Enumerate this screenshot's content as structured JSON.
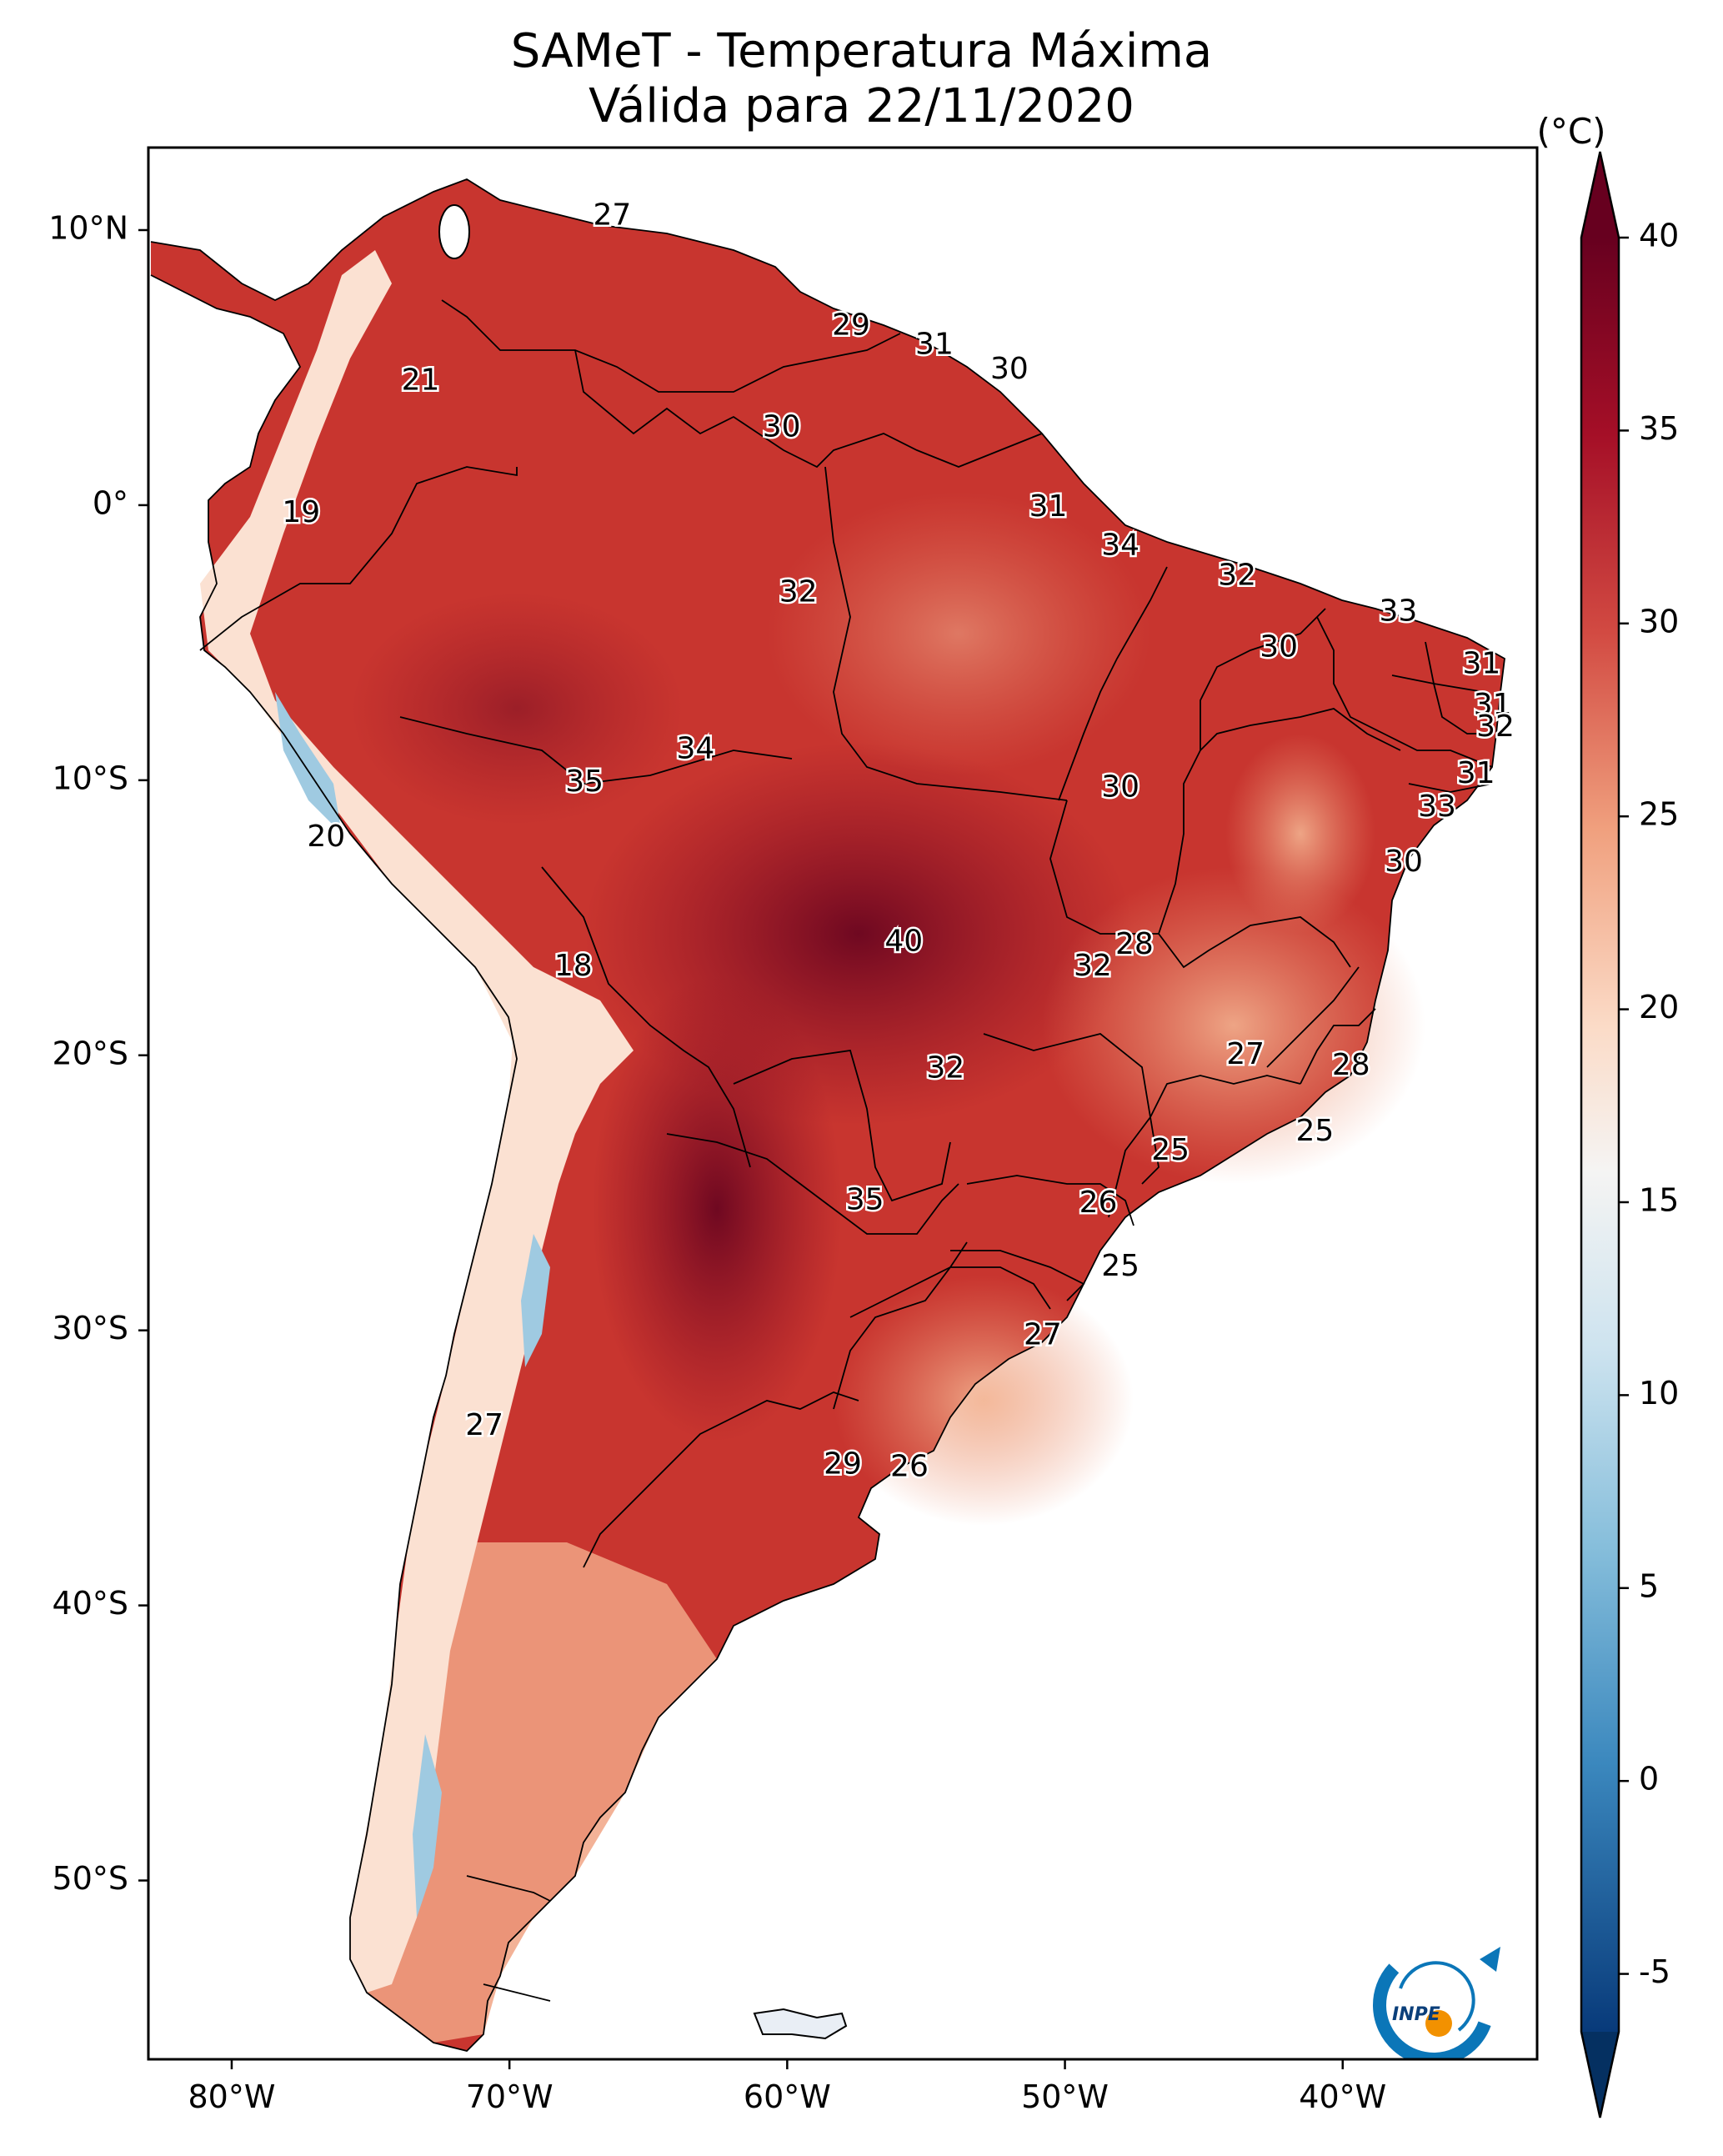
{
  "title": "SAMeT - Temperatura Máxima",
  "subtitle": "Válida para 22/11/2020",
  "logo_text": "INPE",
  "colorbar": {
    "unit": "(°C)",
    "ticks": [
      "40",
      "35",
      "30",
      "25",
      "20",
      "15",
      "10",
      "5",
      "0",
      "-5"
    ]
  },
  "lat_ticks": [
    "10°N",
    "0°",
    "10°S",
    "20°S",
    "30°S",
    "40°S",
    "50°S"
  ],
  "lon_ticks": [
    "80°W",
    "70°W",
    "60°W",
    "50°W",
    "40°W"
  ],
  "map_labels": [
    {
      "text": "27",
      "lon": -66.3,
      "lat": 10.5
    },
    {
      "text": "21",
      "lon": -73.2,
      "lat": 4.5
    },
    {
      "text": "29",
      "lon": -57.7,
      "lat": 6.5
    },
    {
      "text": "31",
      "lon": -54.7,
      "lat": 5.8
    },
    {
      "text": "30",
      "lon": -52.0,
      "lat": 4.9
    },
    {
      "text": "30",
      "lon": -60.2,
      "lat": 2.8
    },
    {
      "text": "19",
      "lon": -77.5,
      "lat": -0.3
    },
    {
      "text": "31",
      "lon": -50.6,
      "lat": -0.1
    },
    {
      "text": "34",
      "lon": -48.0,
      "lat": -1.5
    },
    {
      "text": "32",
      "lon": -59.6,
      "lat": -3.2
    },
    {
      "text": "32",
      "lon": -43.8,
      "lat": -2.6
    },
    {
      "text": "33",
      "lon": -38.0,
      "lat": -3.9
    },
    {
      "text": "30",
      "lon": -42.3,
      "lat": -5.2
    },
    {
      "text": "31",
      "lon": -35.0,
      "lat": -5.8
    },
    {
      "text": "31",
      "lon": -34.6,
      "lat": -7.3
    },
    {
      "text": "32",
      "lon": -34.5,
      "lat": -8.1
    },
    {
      "text": "34",
      "lon": -63.3,
      "lat": -8.9
    },
    {
      "text": "35",
      "lon": -67.3,
      "lat": -10.1
    },
    {
      "text": "30",
      "lon": -48.0,
      "lat": -10.3
    },
    {
      "text": "31",
      "lon": -35.2,
      "lat": -9.8
    },
    {
      "text": "33",
      "lon": -36.6,
      "lat": -11.0
    },
    {
      "text": "20",
      "lon": -76.6,
      "lat": -12.1
    },
    {
      "text": "30",
      "lon": -37.8,
      "lat": -13.0
    },
    {
      "text": "40",
      "lon": -55.8,
      "lat": -15.9
    },
    {
      "text": "28",
      "lon": -47.5,
      "lat": -16.0
    },
    {
      "text": "32",
      "lon": -49.0,
      "lat": -16.8
    },
    {
      "text": "18",
      "lon": -67.7,
      "lat": -16.8
    },
    {
      "text": "27",
      "lon": -43.5,
      "lat": -20.0
    },
    {
      "text": "28",
      "lon": -39.7,
      "lat": -20.4
    },
    {
      "text": "32",
      "lon": -54.3,
      "lat": -20.5
    },
    {
      "text": "25",
      "lon": -41.0,
      "lat": -22.8
    },
    {
      "text": "25",
      "lon": -46.2,
      "lat": -23.5
    },
    {
      "text": "35",
      "lon": -57.2,
      "lat": -25.3
    },
    {
      "text": "26",
      "lon": -48.8,
      "lat": -25.4
    },
    {
      "text": "25",
      "lon": -48.0,
      "lat": -27.7
    },
    {
      "text": "27",
      "lon": -50.8,
      "lat": -30.2
    },
    {
      "text": "27",
      "lon": -70.9,
      "lat": -33.5
    },
    {
      "text": "29",
      "lon": -58.0,
      "lat": -34.9
    },
    {
      "text": "26",
      "lon": -55.6,
      "lat": -35.0
    }
  ]
}
